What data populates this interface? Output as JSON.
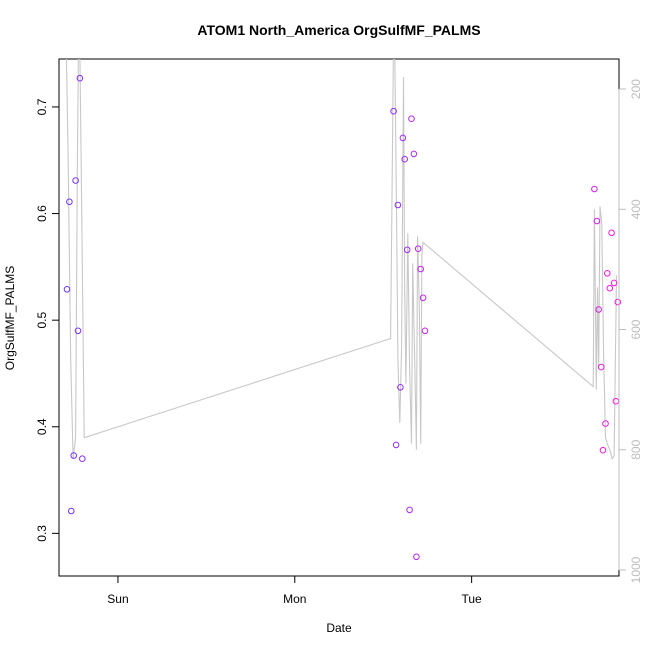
{
  "chart_data": {
    "type": "scatter",
    "title": "ATOM1 North_America OrgSulfMF_PALMS",
    "xlabel": "Date",
    "ylabel": "OrgSulfMF_PALMS",
    "x_ticks": [
      "Sun",
      "Mon",
      "Tue"
    ],
    "xlim": [
      "Sat 16:00",
      "Tue 20:00"
    ],
    "ylim": [
      0.26,
      0.745
    ],
    "y_ticks": [
      "0.3",
      "0.4",
      "0.5",
      "0.6",
      "0.7"
    ],
    "right_axis": {
      "ylim": [
        1010,
        150
      ],
      "reversed": true,
      "ticks": [
        "200",
        "400",
        "600",
        "800",
        "1000"
      ],
      "color": "#bdbdbd"
    },
    "grid": false,
    "legend": "none",
    "colors": {
      "points_start": "#6a36ff",
      "points_end": "#ff18d8",
      "line": "#c8c8c8",
      "axis": "#000000",
      "right_axis": "#bdbdbd"
    },
    "points": [
      {
        "x": "Sat 17:05",
        "y": 0.529
      },
      {
        "x": "Sat 17:25",
        "y": 0.611
      },
      {
        "x": "Sat 17:40",
        "y": 0.321
      },
      {
        "x": "Sat 18:00",
        "y": 0.373
      },
      {
        "x": "Sat 18:15",
        "y": 0.631
      },
      {
        "x": "Sat 18:35",
        "y": 0.49
      },
      {
        "x": "Sat 18:50",
        "y": 0.727
      },
      {
        "x": "Sat 19:10",
        "y": 0.37
      },
      {
        "x": "Mon 13:25",
        "y": 0.696
      },
      {
        "x": "Mon 13:45",
        "y": 0.383
      },
      {
        "x": "Mon 14:00",
        "y": 0.608
      },
      {
        "x": "Mon 14:20",
        "y": 0.437
      },
      {
        "x": "Mon 14:40",
        "y": 0.671
      },
      {
        "x": "Mon 14:55",
        "y": 0.651
      },
      {
        "x": "Mon 15:15",
        "y": 0.566
      },
      {
        "x": "Mon 15:35",
        "y": 0.322
      },
      {
        "x": "Mon 15:50",
        "y": 0.689
      },
      {
        "x": "Mon 16:10",
        "y": 0.656
      },
      {
        "x": "Mon 16:30",
        "y": 0.278
      },
      {
        "x": "Mon 16:45",
        "y": 0.567
      },
      {
        "x": "Mon 17:05",
        "y": 0.548
      },
      {
        "x": "Mon 17:25",
        "y": 0.521
      },
      {
        "x": "Mon 17:40",
        "y": 0.49
      },
      {
        "x": "Tue 16:40",
        "y": 0.623
      },
      {
        "x": "Tue 17:00",
        "y": 0.593
      },
      {
        "x": "Tue 17:15",
        "y": 0.51
      },
      {
        "x": "Tue 17:35",
        "y": 0.456
      },
      {
        "x": "Tue 17:50",
        "y": 0.378
      },
      {
        "x": "Tue 18:10",
        "y": 0.403
      },
      {
        "x": "Tue 18:25",
        "y": 0.544
      },
      {
        "x": "Tue 18:45",
        "y": 0.53
      },
      {
        "x": "Tue 19:00",
        "y": 0.582
      },
      {
        "x": "Tue 19:20",
        "y": 0.535
      },
      {
        "x": "Tue 19:35",
        "y": 0.424
      },
      {
        "x": "Tue 19:50",
        "y": 0.517
      }
    ],
    "secondary_series": {
      "axis": "right",
      "x": [
        "Sat 17:00",
        "Sat 17:15",
        "Sat 17:35",
        "Sat 17:55",
        "Sat 18:15",
        "Sat 18:30",
        "Sat 18:40",
        "Sat 18:50",
        "Sat 19:05",
        "Sat 19:25",
        "Mon 13:00",
        "Mon 13:25",
        "Mon 13:35",
        "Mon 13:50",
        "Mon 14:00",
        "Mon 14:15",
        "Mon 14:30",
        "Mon 14:45",
        "Mon 14:55",
        "Mon 15:05",
        "Mon 15:20",
        "Mon 15:35",
        "Mon 15:50",
        "Mon 16:00",
        "Mon 16:15",
        "Mon 16:30",
        "Mon 16:40",
        "Mon 16:55",
        "Mon 17:05",
        "Mon 17:15",
        "Mon 17:25",
        "Tue 16:30",
        "Tue 16:40",
        "Tue 16:55",
        "Tue 17:05",
        "Tue 17:15",
        "Tue 17:25",
        "Tue 17:40",
        "Tue 17:55",
        "Tue 18:10",
        "Tue 18:25",
        "Tue 18:45",
        "Tue 19:05",
        "Tue 19:20",
        "Tue 19:40"
      ],
      "y": [
        140,
        320,
        650,
        815,
        780,
        320,
        110,
        140,
        400,
        780,
        615,
        110,
        155,
        430,
        650,
        755,
        630,
        180,
        535,
        690,
        440,
        665,
        790,
        490,
        635,
        800,
        445,
        570,
        790,
        475,
        455,
        695,
        400,
        700,
        530,
        665,
        395,
        425,
        640,
        780,
        790,
        800,
        815,
        810,
        510
      ]
    }
  }
}
